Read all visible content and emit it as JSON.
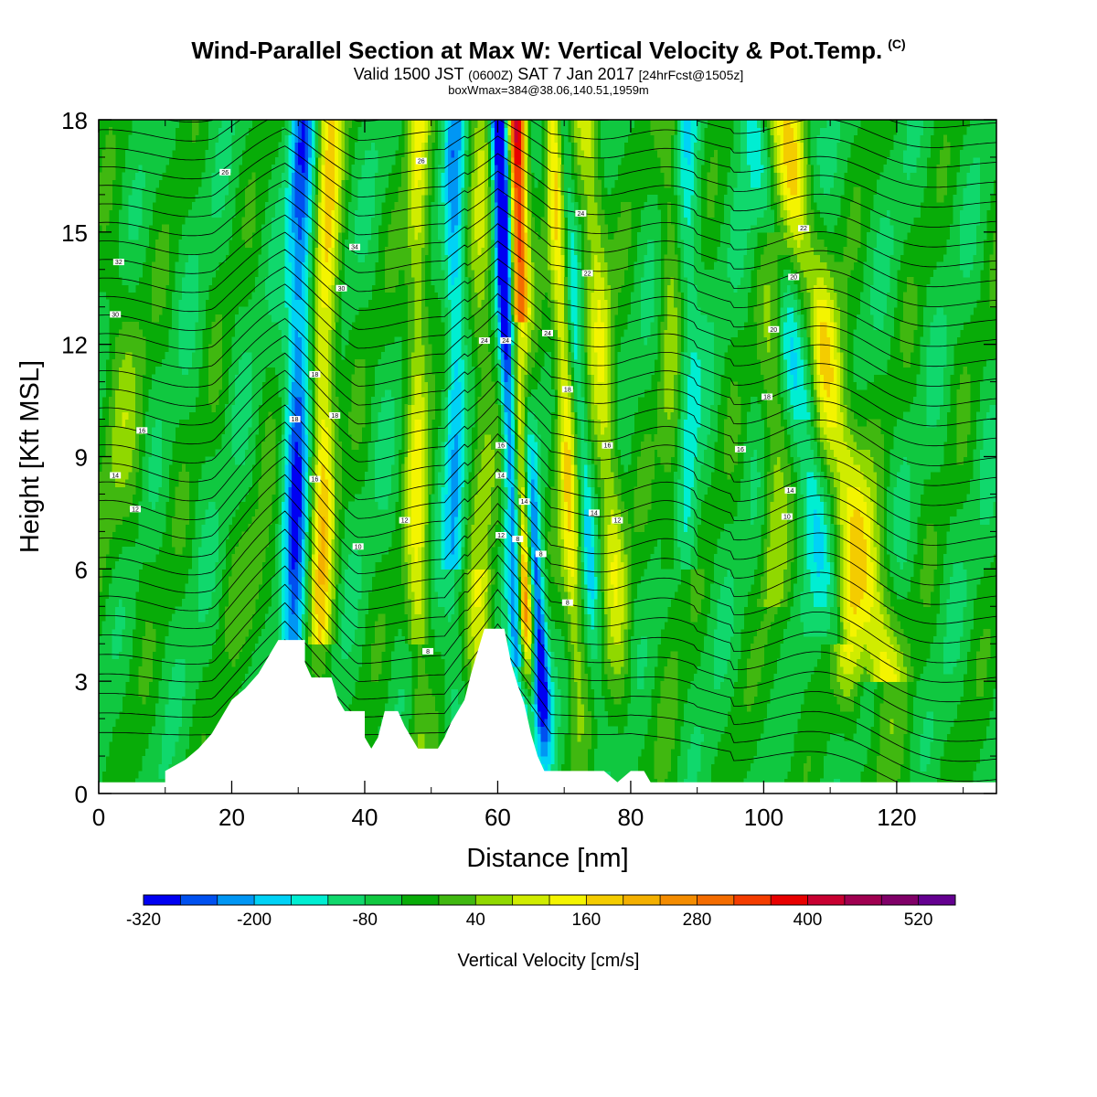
{
  "header": {
    "title": "Wind-Parallel Section at Max W: Vertical Velocity & Pot.Temp.",
    "title_mark": "(C)",
    "valid_prefix": "Valid 1500 JST",
    "valid_utc": "(0600Z)",
    "valid_date": "SAT 7 Jan 2017",
    "forecast_info": "[24hrFcst@1505z]",
    "box_info": "boxWmax=384@38.06,140.51,1959m"
  },
  "chart_data": {
    "type": "heatmap",
    "xlabel": "Distance [nm]",
    "ylabel": "Height [Kft MSL]",
    "xlim": [
      0,
      135
    ],
    "ylim": [
      0,
      18
    ],
    "x_ticks": [
      0,
      20,
      40,
      60,
      80,
      100,
      120
    ],
    "y_ticks": [
      0,
      3,
      6,
      9,
      12,
      15,
      18
    ],
    "grid": false,
    "colorbar": {
      "label": "Vertical Velocity [cm/s]",
      "levels": [
        -320,
        -280,
        -240,
        -200,
        -160,
        -120,
        -80,
        -40,
        0,
        40,
        80,
        120,
        160,
        200,
        240,
        280,
        320,
        360,
        400,
        440,
        480,
        520,
        560
      ],
      "tick_labels": [
        -320,
        -200,
        -80,
        40,
        160,
        280,
        400,
        520
      ],
      "colors": [
        "#0000f2",
        "#0050f0",
        "#0096f4",
        "#00d2f6",
        "#00eed2",
        "#10d86c",
        "#10c840",
        "#08ac08",
        "#40b810",
        "#90d800",
        "#d0ec00",
        "#f4f400",
        "#f4cc00",
        "#f4b000",
        "#f48c00",
        "#f46c00",
        "#f43c00",
        "#e80000",
        "#c80030",
        "#a00050",
        "#800068",
        "#640090"
      ]
    },
    "terrain": [
      [
        0,
        0.3
      ],
      [
        10,
        0.3
      ],
      [
        10,
        0.6
      ],
      [
        13,
        0.9
      ],
      [
        15,
        1.2
      ],
      [
        17,
        1.6
      ],
      [
        18,
        1.9
      ],
      [
        19,
        2.2
      ],
      [
        20,
        2.5
      ],
      [
        22,
        2.8
      ],
      [
        24,
        3.2
      ],
      [
        25,
        3.5
      ],
      [
        26,
        3.8
      ],
      [
        27,
        4.1
      ],
      [
        31,
        4.1
      ],
      [
        31,
        3.5
      ],
      [
        32,
        3.1
      ],
      [
        35,
        3.1
      ],
      [
        36,
        2.5
      ],
      [
        37,
        2.2
      ],
      [
        40,
        2.2
      ],
      [
        40,
        1.5
      ],
      [
        41,
        1.2
      ],
      [
        42,
        1.5
      ],
      [
        43,
        2.2
      ],
      [
        45,
        2.2
      ],
      [
        46,
        1.8
      ],
      [
        48,
        1.2
      ],
      [
        51,
        1.2
      ],
      [
        52,
        1.5
      ],
      [
        53,
        1.9
      ],
      [
        55,
        2.5
      ],
      [
        56,
        3.2
      ],
      [
        57,
        3.8
      ],
      [
        58,
        4.4
      ],
      [
        61,
        4.4
      ],
      [
        62,
        3.5
      ],
      [
        63,
        2.9
      ],
      [
        64,
        2.4
      ],
      [
        65,
        1.6
      ],
      [
        66,
        1.0
      ],
      [
        67,
        0.6
      ],
      [
        76,
        0.6
      ],
      [
        78,
        0.3
      ],
      [
        80,
        0.6
      ],
      [
        82,
        0.6
      ],
      [
        83,
        0.3
      ],
      [
        135,
        0.3
      ]
    ],
    "contour_labels": [
      "26",
      "26",
      "24",
      "34",
      "32",
      "30",
      "30",
      "24",
      "24",
      "24",
      "22",
      "22",
      "20",
      "20",
      "18",
      "18",
      "18",
      "18",
      "18",
      "16",
      "16",
      "16",
      "16",
      "16",
      "14",
      "14",
      "14",
      "14",
      "14",
      "12",
      "12",
      "12",
      "12",
      "10",
      "10",
      "8",
      "8",
      "8",
      "8"
    ]
  }
}
